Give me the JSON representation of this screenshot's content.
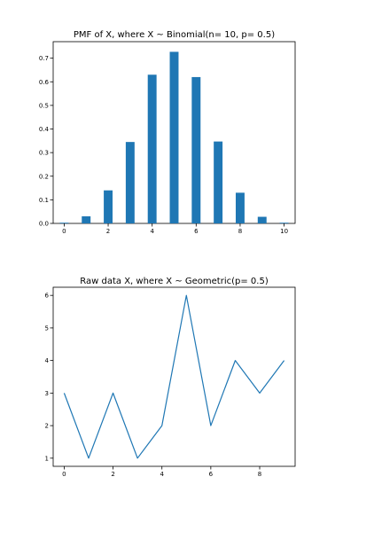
{
  "chart_data": [
    {
      "type": "bar",
      "title": "PMF of X, where X ~ Binomial(n= 10, p= 0.5)",
      "xlabel": "",
      "ylabel": "",
      "x": [
        0,
        1,
        2,
        3,
        4,
        5,
        6,
        7,
        8,
        9,
        10
      ],
      "values": [
        0.003,
        0.03,
        0.14,
        0.345,
        0.63,
        0.727,
        0.62,
        0.347,
        0.13,
        0.028,
        0.003
      ],
      "xlim": [
        -0.5,
        10.5
      ],
      "ylim": [
        0,
        0.77
      ],
      "xticks": [
        0,
        2,
        4,
        6,
        8,
        10
      ],
      "xtick_labels": [
        "0",
        "2",
        "4",
        "6",
        "8",
        "10"
      ],
      "yticks": [
        0.0,
        0.1,
        0.2,
        0.3,
        0.4,
        0.5,
        0.6,
        0.7
      ],
      "ytick_labels": [
        "0.0",
        "0.1",
        "0.2",
        "0.3",
        "0.4",
        "0.5",
        "0.6",
        "0.7"
      ],
      "color": "#1f77b4",
      "grid": false,
      "legend": false
    },
    {
      "type": "line",
      "title": "Raw data X, where X ~ Geometric(p= 0.5)",
      "xlabel": "",
      "ylabel": "",
      "x": [
        0,
        1,
        2,
        3,
        4,
        5,
        6,
        7,
        8,
        9
      ],
      "values": [
        3,
        1,
        3,
        1,
        2,
        6,
        2,
        4,
        3,
        4
      ],
      "xlim": [
        -0.45,
        9.45
      ],
      "ylim": [
        0.75,
        6.25
      ],
      "xticks": [
        0,
        2,
        4,
        6,
        8
      ],
      "xtick_labels": [
        "0",
        "2",
        "4",
        "6",
        "8"
      ],
      "yticks": [
        1,
        2,
        3,
        4,
        5,
        6
      ],
      "ytick_labels": [
        "1",
        "2",
        "3",
        "4",
        "5",
        "6"
      ],
      "color": "#1f77b4",
      "grid": false,
      "legend": false
    }
  ]
}
